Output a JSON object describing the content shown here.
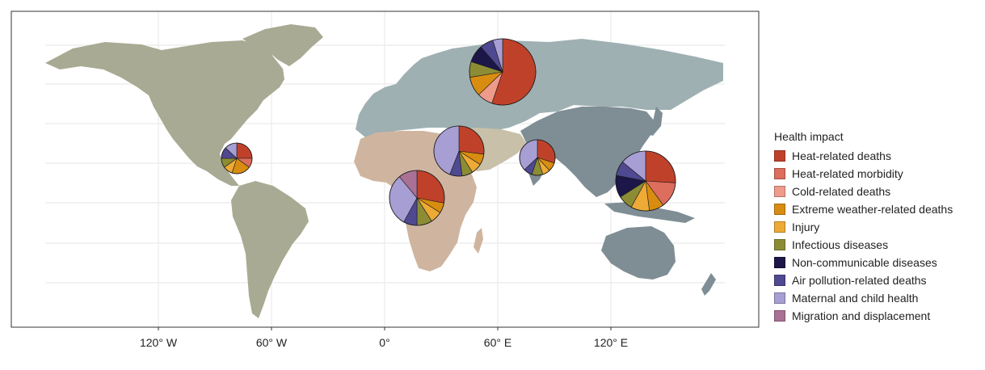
{
  "map": {
    "x_ticks": [
      "120° W",
      "60° W",
      "0°",
      "60° E",
      "120° E"
    ],
    "region_colors": {
      "americas": "#a9aa93",
      "europe_russia": "#9fb0b3",
      "africa": "#cfb5a0",
      "middle_east": "#c9c0aa",
      "asia_pacific": "#7f8e95",
      "ocean": "#ffffff",
      "grid": "#ebebeb"
    }
  },
  "legend": {
    "title": "Health impact",
    "items": [
      {
        "label": "Heat-related deaths",
        "color": "#c0412a"
      },
      {
        "label": "Heat-related morbidity",
        "color": "#dd6d5c"
      },
      {
        "label": "Cold-related deaths",
        "color": "#ee9b8c"
      },
      {
        "label": "Extreme weather-related deaths",
        "color": "#d98d10"
      },
      {
        "label": "Injury",
        "color": "#eeaa36"
      },
      {
        "label": "Infectious diseases",
        "color": "#8c8c35"
      },
      {
        "label": "Non-communicable diseases",
        "color": "#1c1748"
      },
      {
        "label": "Air pollution-related deaths",
        "color": "#4e4990"
      },
      {
        "label": "Maternal and child health",
        "color": "#a79ed3"
      },
      {
        "label": "Migration and displacement",
        "color": "#aa7095"
      }
    ]
  },
  "chart_data": {
    "type": "pie",
    "pies": [
      {
        "region": "North America / Caribbean",
        "shares": [
          0.25,
          0.1,
          0,
          0.2,
          0.1,
          0.1,
          0,
          0.12,
          0.13,
          0
        ]
      },
      {
        "region": "Europe",
        "shares": [
          0.58,
          0,
          0.08,
          0.1,
          0,
          0.08,
          0.09,
          0.07,
          0.05,
          0
        ]
      },
      {
        "region": "Middle East",
        "shares": [
          0.27,
          0,
          0,
          0.07,
          0.07,
          0.07,
          0,
          0.08,
          0.44,
          0
        ]
      },
      {
        "region": "Africa",
        "shares": [
          0.28,
          0,
          0,
          0.06,
          0.07,
          0.09,
          0,
          0.08,
          0.31,
          0.11
        ]
      },
      {
        "region": "South Asia",
        "shares": [
          0.3,
          0,
          0,
          0.08,
          0.07,
          0.1,
          0,
          0.08,
          0.37,
          0
        ]
      },
      {
        "region": "East Asia / Pacific",
        "shares": [
          0.26,
          0.14,
          0,
          0.08,
          0.1,
          0.08,
          0.12,
          0.08,
          0.14,
          0
        ]
      }
    ]
  }
}
